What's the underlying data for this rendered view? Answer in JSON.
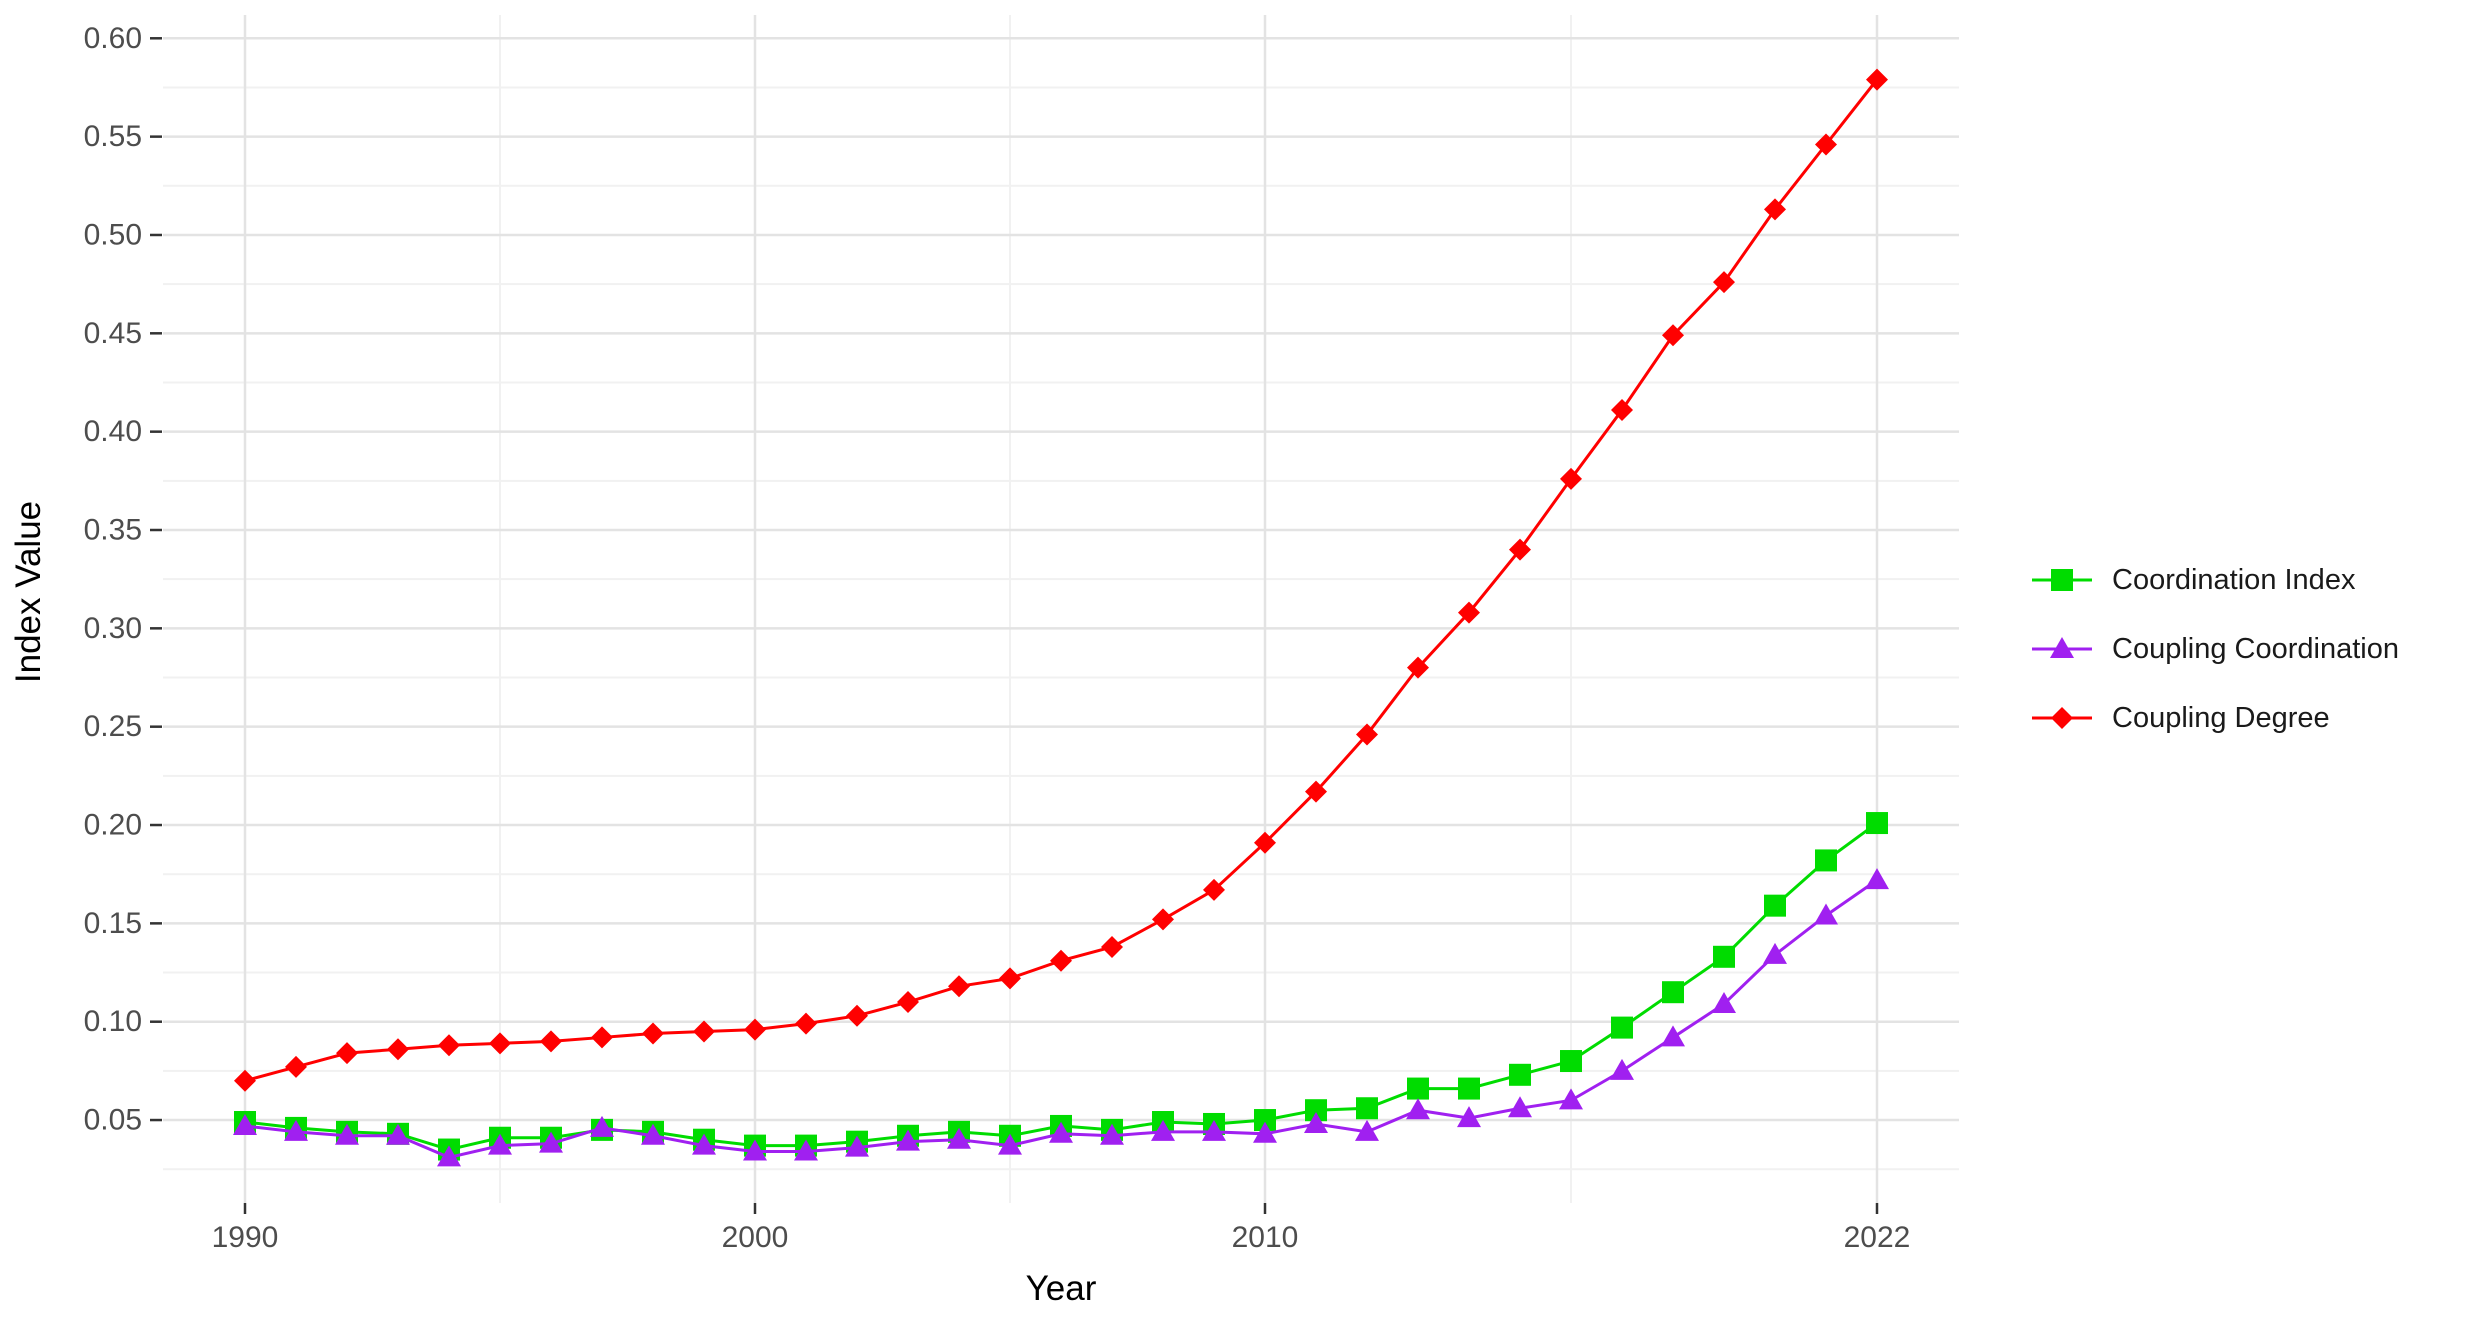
{
  "chart_data": {
    "type": "line",
    "title": "",
    "xlabel": "Year",
    "ylabel": "Index Value",
    "x": [
      1990,
      1991,
      1992,
      1993,
      1994,
      1995,
      1996,
      1997,
      1998,
      1999,
      2000,
      2001,
      2002,
      2003,
      2004,
      2005,
      2006,
      2007,
      2008,
      2009,
      2010,
      2011,
      2012,
      2013,
      2014,
      2015,
      2016,
      2017,
      2018,
      2019,
      2020,
      2021,
      2022
    ],
    "series": [
      {
        "name": "Coordination Index",
        "color": "#00DC00",
        "marker": "square",
        "values": [
          0.049,
          0.046,
          0.044,
          0.043,
          0.035,
          0.041,
          0.041,
          0.045,
          0.044,
          0.04,
          0.037,
          0.037,
          0.039,
          0.042,
          0.044,
          0.042,
          0.047,
          0.045,
          0.049,
          0.048,
          0.05,
          0.055,
          0.056,
          0.066,
          0.066,
          0.073,
          0.08,
          0.097,
          0.115,
          0.133,
          0.159,
          0.182,
          0.201
        ]
      },
      {
        "name": "Coupling Coordination",
        "color": "#A020F0",
        "marker": "triangle",
        "values": [
          0.047,
          0.044,
          0.042,
          0.042,
          0.031,
          0.037,
          0.038,
          0.046,
          0.042,
          0.037,
          0.034,
          0.034,
          0.036,
          0.039,
          0.04,
          0.037,
          0.043,
          0.042,
          0.044,
          0.044,
          0.043,
          0.048,
          0.044,
          0.055,
          0.051,
          0.056,
          0.06,
          0.075,
          0.092,
          0.109,
          0.134,
          0.154,
          0.172
        ]
      },
      {
        "name": "Coupling Degree",
        "color": "#FF0000",
        "marker": "diamond",
        "values": [
          0.07,
          0.077,
          0.084,
          0.086,
          0.088,
          0.089,
          0.09,
          0.092,
          0.094,
          0.095,
          0.096,
          0.099,
          0.103,
          0.11,
          0.118,
          0.122,
          0.131,
          0.138,
          0.152,
          0.167,
          0.191,
          0.217,
          0.246,
          0.28,
          0.308,
          0.34,
          0.376,
          0.411,
          0.449,
          0.476,
          0.513,
          0.546,
          0.579
        ]
      }
    ],
    "x_ticks": [
      1990,
      2000,
      2010,
      2022
    ],
    "x_minor_gridlines": [
      1995,
      2005,
      2016
    ],
    "y_ticks": [
      0.05,
      0.1,
      0.15,
      0.2,
      0.25,
      0.3,
      0.35,
      0.4,
      0.45,
      0.5,
      0.55,
      0.6
    ],
    "y_minor_gridlines": [
      0.025,
      0.075,
      0.125,
      0.175,
      0.225,
      0.275,
      0.325,
      0.375,
      0.425,
      0.475,
      0.525,
      0.575
    ],
    "xlim": [
      1988.4,
      2023.6
    ],
    "ylim": [
      0.008,
      0.612
    ],
    "grid": true,
    "legend_position": "right",
    "colors": {
      "background": "#FFFFFF",
      "major_gridline": "#E3E3E3",
      "minor_gridline": "#F1F1F1",
      "tick_mark": "#333333",
      "tick_label": "#4D4D4D",
      "axis_title": "#000000",
      "legend_text": "#1A1A1A"
    }
  }
}
